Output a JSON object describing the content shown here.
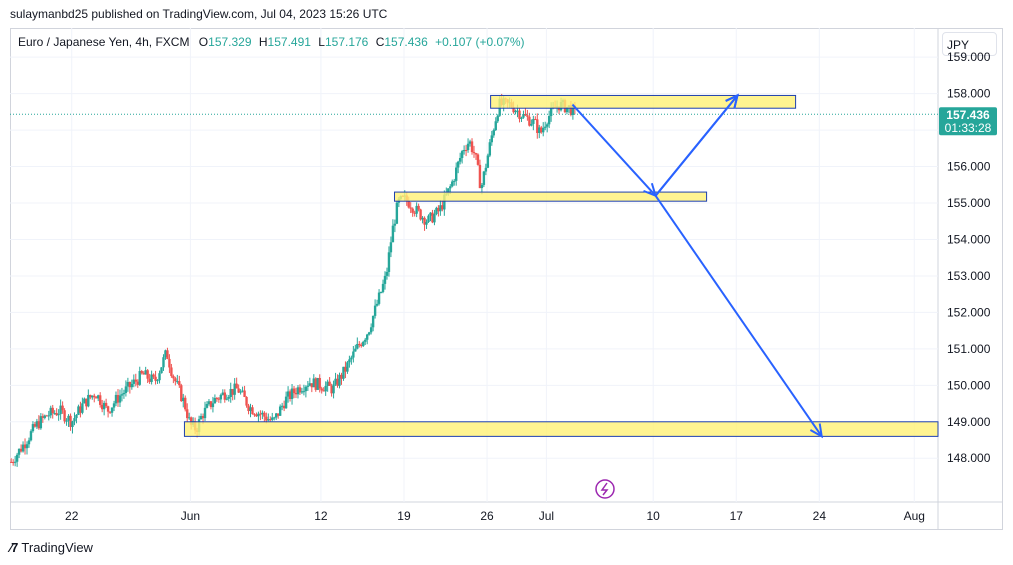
{
  "published_line": "sulaymanbd25 published on TradingView.com, Jul 04, 2023 15:26 UTC",
  "legend": {
    "symbol": "Euro / Japanese Yen, 4h, FXCM",
    "o_label": "O",
    "o_value": "157.329",
    "h_label": "H",
    "h_value": "157.491",
    "l_label": "L",
    "l_value": "157.176",
    "c_label": "C",
    "c_value": "157.436",
    "change": "+0.107 (+0.07%)"
  },
  "currency": "JPY",
  "price_tag": {
    "price": "157.436",
    "countdown": "01:33:28"
  },
  "footer_brand": "TradingView",
  "colors": {
    "up": "#26a69a",
    "down": "#ef5350",
    "zone_fill": "#fff176",
    "zone_stroke": "#1e40af",
    "arrow": "#2962ff",
    "price_line": "#26a69a"
  },
  "chart_data": {
    "type": "candlestick",
    "symbol": "EURJPY",
    "timeframe": "4h",
    "x_ticks": [
      "22",
      "Jun",
      "12",
      "19",
      "26",
      "Jul",
      "10",
      "17",
      "24",
      "Aug"
    ],
    "x_tick_days": [
      22,
      32,
      43,
      50,
      57,
      62,
      71,
      78,
      85,
      93
    ],
    "x_day_range": [
      16.8,
      95
    ],
    "y_ticks": [
      "148.000",
      "149.000",
      "150.000",
      "151.000",
      "152.000",
      "153.000",
      "154.000",
      "155.000",
      "156.000",
      "157.000",
      "158.000",
      "159.000"
    ],
    "y_range": [
      146.8,
      159.8
    ],
    "last_price": 157.436,
    "close_path": [
      [
        16.9,
        147.9
      ],
      [
        18,
        148.4
      ],
      [
        19,
        148.9
      ],
      [
        20,
        149.2
      ],
      [
        21,
        149.3
      ],
      [
        22,
        149.0
      ],
      [
        23,
        149.5
      ],
      [
        24,
        149.8
      ],
      [
        25,
        149.3
      ],
      [
        26,
        149.7
      ],
      [
        27,
        150.0
      ],
      [
        28,
        150.3
      ],
      [
        29,
        150.1
      ],
      [
        30,
        150.9
      ],
      [
        30.5,
        150.3
      ],
      [
        31,
        149.9
      ],
      [
        31.5,
        149.5
      ],
      [
        32,
        148.9
      ],
      [
        32.5,
        148.8
      ],
      [
        33,
        149.2
      ],
      [
        34,
        149.6
      ],
      [
        35,
        149.8
      ],
      [
        36,
        149.9
      ],
      [
        37,
        149.4
      ],
      [
        38,
        149.2
      ],
      [
        39,
        149.0
      ],
      [
        40,
        149.6
      ],
      [
        41,
        149.9
      ],
      [
        42,
        150.1
      ],
      [
        43,
        150.0
      ],
      [
        44,
        149.9
      ],
      [
        45,
        150.4
      ],
      [
        46,
        151.0
      ],
      [
        47,
        151.5
      ],
      [
        48,
        152.5
      ],
      [
        48.5,
        153.0
      ],
      [
        49,
        154.2
      ],
      [
        49.5,
        155.0
      ],
      [
        50,
        155.1
      ],
      [
        50.5,
        155.0
      ],
      [
        51,
        154.8
      ],
      [
        52,
        154.5
      ],
      [
        53,
        154.8
      ],
      [
        54,
        155.5
      ],
      [
        55,
        156.5
      ],
      [
        55.5,
        156.7
      ],
      [
        56,
        156.3
      ],
      [
        56.5,
        155.4
      ],
      [
        57,
        156.2
      ],
      [
        57.5,
        157.0
      ],
      [
        58,
        157.7
      ],
      [
        59,
        157.7
      ],
      [
        60,
        157.4
      ],
      [
        61,
        157.2
      ],
      [
        61.5,
        156.9
      ],
      [
        62,
        157.3
      ],
      [
        63,
        157.7
      ],
      [
        64,
        157.6
      ],
      [
        64.5,
        157.4
      ]
    ],
    "zones": [
      {
        "day_from": 57.3,
        "day_to": 83,
        "price_from": 157.6,
        "price_to": 157.95
      },
      {
        "day_from": 49.2,
        "day_to": 75.5,
        "price_from": 155.05,
        "price_to": 155.3
      },
      {
        "day_from": 31.5,
        "day_to": 95,
        "price_from": 148.6,
        "price_to": 149.0
      }
    ],
    "arrows": [
      {
        "from": [
          64.2,
          157.7
        ],
        "to": [
          71.2,
          155.2
        ]
      },
      {
        "from": [
          71.2,
          155.2
        ],
        "to": [
          78.1,
          157.95
        ]
      },
      {
        "from": [
          71.2,
          155.2
        ],
        "to": [
          78.1,
          157.95
        ]
      },
      {
        "from": [
          71.2,
          155.2
        ],
        "to": [
          85.2,
          148.6
        ]
      }
    ],
    "grid": true
  }
}
